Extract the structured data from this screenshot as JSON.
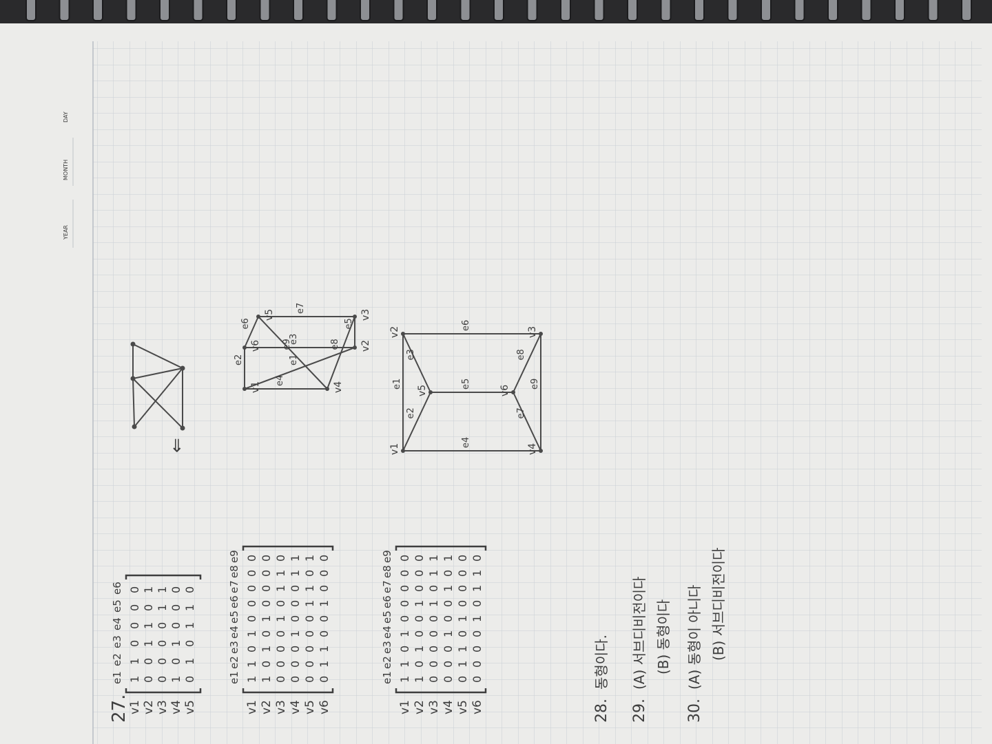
{
  "header": {
    "year_label": "YEAR",
    "month_label": "MONTH",
    "day_label": "DAY"
  },
  "p27": {
    "number": "27.",
    "m1": {
      "cols": [
        "e1",
        "e2",
        "e3",
        "e4",
        "e5",
        "e6"
      ],
      "rows": [
        {
          "label": "v1",
          "vals": [
            "1",
            "1",
            "0",
            "0",
            "0",
            "0"
          ]
        },
        {
          "label": "v2",
          "vals": [
            "0",
            "0",
            "1",
            "1",
            "0",
            "1"
          ]
        },
        {
          "label": "v3",
          "vals": [
            "0",
            "0",
            "0",
            "0",
            "1",
            "1"
          ]
        },
        {
          "label": "v4",
          "vals": [
            "1",
            "0",
            "1",
            "0",
            "0",
            "0"
          ]
        },
        {
          "label": "v5",
          "vals": [
            "0",
            "1",
            "0",
            "1",
            "1",
            "0"
          ]
        }
      ],
      "arrow": "⇐"
    },
    "m2": {
      "cols": [
        "e1",
        "e2",
        "e3",
        "e4",
        "e5",
        "e6",
        "e7",
        "e8",
        "e9"
      ],
      "rows": [
        {
          "label": "v1",
          "vals": [
            "1",
            "1",
            "0",
            "1",
            "0",
            "0",
            "0",
            "0",
            "0"
          ]
        },
        {
          "label": "v2",
          "vals": [
            "1",
            "0",
            "1",
            "0",
            "1",
            "0",
            "0",
            "0",
            "0"
          ]
        },
        {
          "label": "v3",
          "vals": [
            "0",
            "0",
            "0",
            "0",
            "1",
            "0",
            "1",
            "1",
            "0"
          ]
        },
        {
          "label": "v4",
          "vals": [
            "0",
            "0",
            "0",
            "1",
            "0",
            "0",
            "0",
            "1",
            "1"
          ]
        },
        {
          "label": "v5",
          "vals": [
            "0",
            "0",
            "0",
            "0",
            "0",
            "1",
            "1",
            "0",
            "1"
          ]
        },
        {
          "label": "v6",
          "vals": [
            "0",
            "1",
            "1",
            "0",
            "0",
            "1",
            "0",
            "0",
            "0"
          ]
        }
      ],
      "graph_labels": {
        "v1": "v1",
        "v2": "v2",
        "v3": "v3",
        "v4": "v4",
        "v5": "v5",
        "v6": "v6",
        "e1": "e1",
        "e2": "e2",
        "e3": "e3",
        "e4": "e4",
        "e5": "e5",
        "e6": "e6",
        "e7": "e7",
        "e8": "e8",
        "e9": "e9"
      }
    },
    "m3": {
      "cols": [
        "e1",
        "e2",
        "e3",
        "e4",
        "e5",
        "e6",
        "e7",
        "e8",
        "e9"
      ],
      "rows": [
        {
          "label": "v1",
          "vals": [
            "1",
            "1",
            "0",
            "1",
            "0",
            "0",
            "0",
            "0",
            "0"
          ]
        },
        {
          "label": "v2",
          "vals": [
            "1",
            "0",
            "1",
            "0",
            "0",
            "1",
            "0",
            "0",
            "0"
          ]
        },
        {
          "label": "v3",
          "vals": [
            "0",
            "0",
            "0",
            "0",
            "0",
            "1",
            "0",
            "1",
            "1"
          ]
        },
        {
          "label": "v4",
          "vals": [
            "0",
            "0",
            "0",
            "1",
            "0",
            "0",
            "1",
            "0",
            "1"
          ]
        },
        {
          "label": "v5",
          "vals": [
            "0",
            "1",
            "1",
            "0",
            "1",
            "0",
            "0",
            "0",
            "0"
          ]
        },
        {
          "label": "v6",
          "vals": [
            "0",
            "0",
            "0",
            "0",
            "1",
            "0",
            "1",
            "1",
            "0"
          ]
        }
      ],
      "graph_labels": {
        "v1": "v1",
        "v2": "v2",
        "v3": "v3",
        "v4": "v4",
        "v5": "v5",
        "v6": "v6",
        "e1": "e1",
        "e2": "e2",
        "e3": "e3",
        "e4": "e4",
        "e5": "e5",
        "e6": "e6",
        "e7": "e7",
        "e8": "e8",
        "e9": "e9"
      }
    }
  },
  "answers": [
    {
      "num": "28.",
      "text": "동형이다."
    },
    {
      "num": "29.",
      "text": "(A) 서브디비전이다"
    },
    {
      "num": "",
      "text": "(B) 동형이다"
    },
    {
      "num": "30.",
      "text": "(A) 동형이 아니다"
    },
    {
      "num": "",
      "text": "(B) 서브디비전이다"
    }
  ],
  "colors": {
    "paper": "#ececea",
    "grid": "#c9ced4",
    "ink": "#3e3e3e",
    "ring": "#1c1c1e"
  }
}
